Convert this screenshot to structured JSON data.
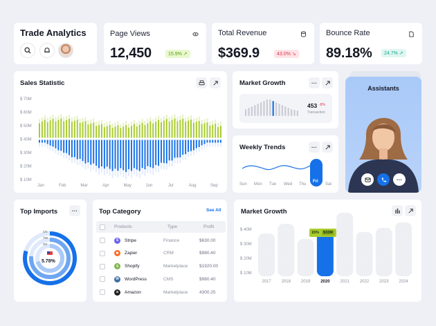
{
  "header": {
    "title": "Trade Analytics"
  },
  "stats": [
    {
      "label": "Page Views",
      "value": "12,450",
      "badge": "15.9% ↗",
      "tone": "green"
    },
    {
      "label": "Total Revenue",
      "value": "$369.9",
      "badge": "43.0% ↘",
      "tone": "red"
    },
    {
      "label": "Bounce Rate",
      "value": "89.18%",
      "badge": "24.7% ↗",
      "tone": "teal"
    }
  ],
  "sales_statistic": {
    "title": "Sales Statistic",
    "yticks": [
      "$ 70M",
      "$ 60M",
      "$ 50M",
      "$ 40M",
      "$ 30M",
      "$ 20M",
      "$ 10M"
    ],
    "months": [
      "Jan",
      "Feb",
      "Mar",
      "Apr",
      "May",
      "Jun",
      "Jul",
      "Aug",
      "Sep"
    ]
  },
  "market_growth_small": {
    "title": "Market Growth",
    "value": "453",
    "change": "-8%",
    "caption": "Transaction"
  },
  "weekly_trends": {
    "title": "Weekly Trends",
    "days": [
      "Sun",
      "Mon",
      "Tue",
      "Wed",
      "Thu",
      "Fri",
      "Sat"
    ],
    "active_day": "Fri"
  },
  "assistants": {
    "title": "Assistants"
  },
  "top_imports": {
    "title": "Top Imports",
    "labels": [
      "CN",
      "TW",
      "SG"
    ],
    "center_value": "5.78%"
  },
  "top_category": {
    "title": "Top Category",
    "see_all": "See All",
    "columns": [
      "Products",
      "Type",
      "Profit"
    ],
    "rows": [
      {
        "name": "Stripe",
        "type": "Finance",
        "profit": "$630.00",
        "color": "#6b62f0",
        "glyph": "S"
      },
      {
        "name": "Zapier",
        "type": "CRM",
        "profit": "$980.40",
        "color": "#ff6a1f",
        "glyph": "✱"
      },
      {
        "name": "Shopify",
        "type": "Marketplace",
        "profit": "$1920.00",
        "color": "#7ab648",
        "glyph": "S"
      },
      {
        "name": "WordPress",
        "type": "CMS",
        "profit": "$980.40",
        "color": "#3b6ea8",
        "glyph": "W"
      },
      {
        "name": "Amazon",
        "type": "Marketplace",
        "profit": "4300.25",
        "color": "#222222",
        "glyph": "a"
      }
    ]
  },
  "market_growth": {
    "title": "Market Growth",
    "yticks": [
      "$ 40M",
      "$ 30M",
      "$ 20M",
      "$ 10M"
    ],
    "years": [
      "2017",
      "2018",
      "2019",
      "2020",
      "2021",
      "2022",
      "2023",
      "2024"
    ],
    "tooltip_pct": "15%",
    "tooltip_val": "$33M"
  },
  "colors": {
    "lime": "#a8cc2e",
    "blue": "#1671e8",
    "accent_bg": "#a9c9f8"
  }
}
